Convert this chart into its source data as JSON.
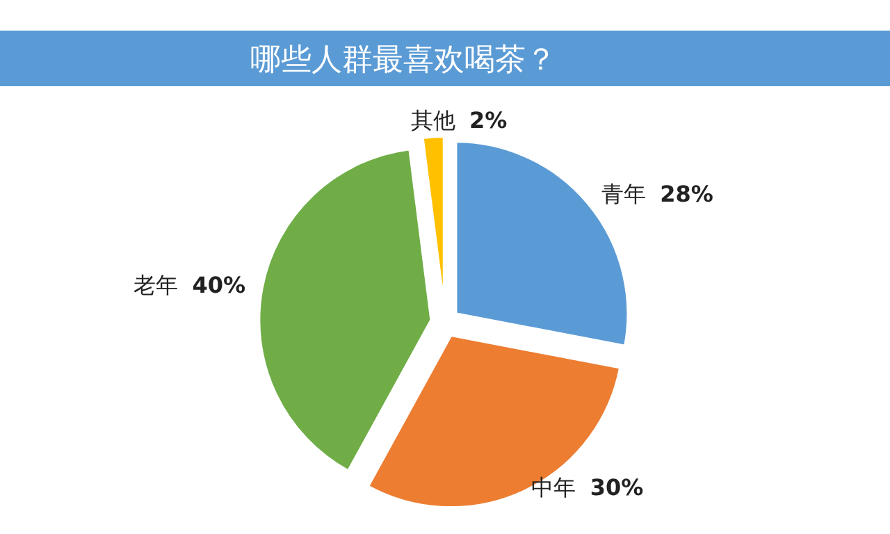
{
  "chart_data": {
    "type": "pie",
    "title": "哪些人群最喜欢喝茶？",
    "categories": [
      "青年",
      "中年",
      "老年",
      "其他"
    ],
    "values": [
      28,
      30,
      40,
      2
    ],
    "colors": [
      "#5b9bd5",
      "#ed7d31",
      "#70ad47",
      "#ffc000"
    ],
    "value_labels": [
      "28%",
      "30%",
      "40%",
      "2%"
    ]
  }
}
